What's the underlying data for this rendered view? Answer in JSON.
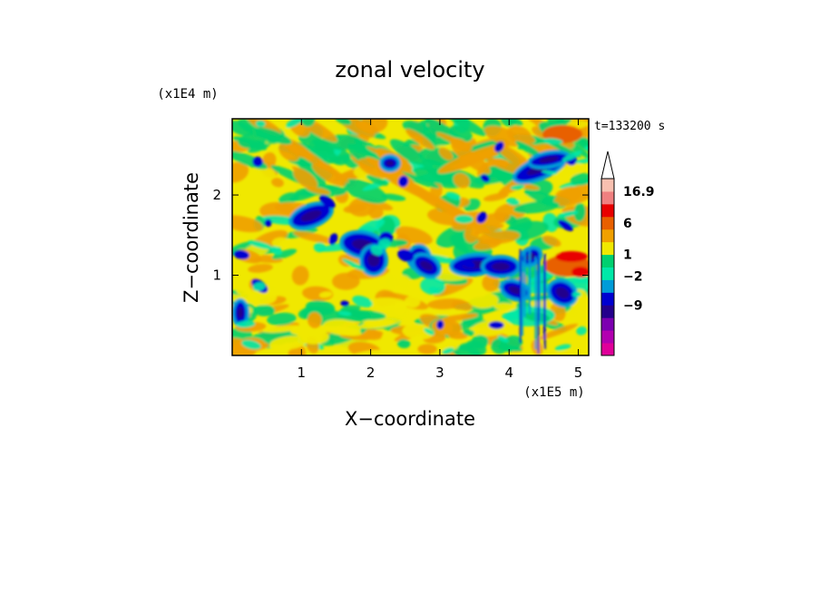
{
  "chart_data": {
    "type": "heatmap",
    "title": "zonal velocity",
    "xlabel": "X−coordinate",
    "ylabel": "Z−coordinate",
    "x_unit_label": "(x1E5 m)",
    "y_unit_label": "(x1E4 m)",
    "time_label": "t=133200 s",
    "xlim": [
      0,
      5.15
    ],
    "ylim": [
      0,
      2.95
    ],
    "x_ticks": [
      1,
      2,
      3,
      4,
      5
    ],
    "y_ticks": [
      1,
      2
    ],
    "x_tick_labels": [
      "1",
      "2",
      "3",
      "4",
      "5"
    ],
    "y_tick_labels": [
      "1",
      "2"
    ],
    "colorbar": {
      "levels": [
        -13,
        -9,
        -6,
        -4,
        -2,
        -1,
        0,
        1,
        2,
        3,
        6,
        9,
        12,
        16.9
      ],
      "labeled_levels": [
        "16.9",
        "6",
        "1",
        "−2",
        "−9"
      ],
      "colors": [
        "#e0009a",
        "#b200b0",
        "#7c00b0",
        "#24008c",
        "#0000d0",
        "#009cd8",
        "#00e8a8",
        "#00d070",
        "#f0e800",
        "#f0a000",
        "#e86000",
        "#e80000",
        "#f08080",
        "#f8c0b0"
      ],
      "overflow_arrow": "top"
    }
  }
}
